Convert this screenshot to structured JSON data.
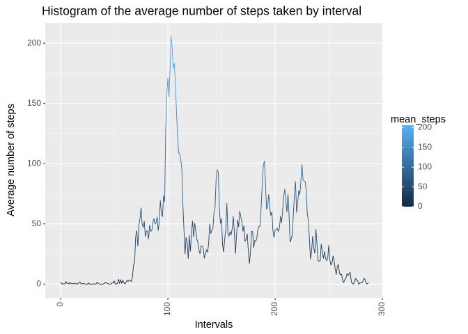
{
  "chart_data": {
    "type": "line",
    "title": "Histogram of the average number of steps taken by interval",
    "x_label": "Intervals",
    "y_label": "Average number of steps",
    "x": [
      0,
      1,
      2,
      3,
      4,
      5,
      6,
      7,
      8,
      9,
      10,
      11,
      12,
      13,
      14,
      15,
      16,
      17,
      18,
      19,
      20,
      21,
      22,
      23,
      24,
      25,
      26,
      27,
      28,
      29,
      30,
      31,
      32,
      33,
      34,
      35,
      36,
      37,
      38,
      39,
      40,
      41,
      42,
      43,
      44,
      45,
      46,
      47,
      48,
      49,
      50,
      51,
      52,
      53,
      54,
      55,
      56,
      57,
      58,
      59,
      60,
      61,
      62,
      63,
      64,
      65,
      66,
      67,
      68,
      69,
      70,
      71,
      72,
      73,
      74,
      75,
      76,
      77,
      78,
      79,
      80,
      81,
      82,
      83,
      84,
      85,
      86,
      87,
      88,
      89,
      90,
      91,
      92,
      93,
      94,
      95,
      96,
      97,
      98,
      99,
      100,
      101,
      102,
      103,
      104,
      105,
      106,
      107,
      108,
      109,
      110,
      111,
      112,
      113,
      114,
      115,
      116,
      117,
      118,
      119,
      120,
      121,
      122,
      123,
      124,
      125,
      126,
      127,
      128,
      129,
      130,
      131,
      132,
      133,
      134,
      135,
      136,
      137,
      138,
      139,
      140,
      141,
      142,
      143,
      144,
      145,
      146,
      147,
      148,
      149,
      150,
      151,
      152,
      153,
      154,
      155,
      156,
      157,
      158,
      159,
      160,
      161,
      162,
      163,
      164,
      165,
      166,
      167,
      168,
      169,
      170,
      171,
      172,
      173,
      174,
      175,
      176,
      177,
      178,
      179,
      180,
      181,
      182,
      183,
      184,
      185,
      186,
      187,
      188,
      189,
      190,
      191,
      192,
      193,
      194,
      195,
      196,
      197,
      198,
      199,
      200,
      201,
      202,
      203,
      204,
      205,
      206,
      207,
      208,
      209,
      210,
      211,
      212,
      213,
      214,
      215,
      216,
      217,
      218,
      219,
      220,
      221,
      222,
      223,
      224,
      225,
      226,
      227,
      228,
      229,
      230,
      231,
      232,
      233,
      234,
      235,
      236,
      237,
      238,
      239,
      240,
      241,
      242,
      243,
      244,
      245,
      246,
      247,
      248,
      249,
      250,
      251,
      252,
      253,
      254,
      255,
      256,
      257,
      258,
      259,
      260,
      261,
      262,
      263,
      264,
      265,
      266,
      267,
      268,
      269,
      270,
      271,
      272,
      273,
      274,
      275,
      276,
      277,
      278,
      279,
      280,
      281,
      282,
      283,
      284,
      285,
      286,
      287
    ],
    "series": [
      {
        "name": "mean_steps",
        "values": [
          1.7,
          0.3,
          0.1,
          0.2,
          0.1,
          2.1,
          0.5,
          0.9,
          0,
          1.5,
          0.3,
          0.1,
          0.3,
          0.7,
          0.2,
          0.3,
          0,
          1.1,
          1.8,
          0.2,
          0.2,
          0.4,
          0.3,
          0,
          0,
          0,
          1.1,
          0,
          0,
          0.1,
          0,
          0.2,
          0,
          0,
          1.5,
          0.9,
          0,
          0,
          0,
          0,
          0.2,
          0.6,
          1.6,
          0.6,
          0.5,
          0.1,
          0,
          0,
          1.2,
          0.9,
          2.6,
          0,
          0.3,
          0.4,
          4.1,
          0.7,
          3.5,
          0.8,
          3.1,
          1.1,
          0,
          1.6,
          3,
          2.2,
          3.3,
          3,
          2.1,
          6.1,
          16,
          18.3,
          39.5,
          44.5,
          31.5,
          49.3,
          53.8,
          63.5,
          50,
          47.1,
          52.2,
          39.3,
          44,
          44.2,
          37.4,
          49,
          43.8,
          44.4,
          50.5,
          54.5,
          49.9,
          51,
          55.7,
          44.3,
          52.3,
          69.5,
          57.8,
          56.2,
          73.4,
          68.2,
          129.4,
          157.5,
          171.2,
          155.4,
          177.3,
          206.2,
          195.9,
          179.6,
          183.4,
          167,
          143.5,
          124,
          109.1,
          108.1,
          103.7,
          96,
          66.2,
          45.2,
          24.8,
          38.8,
          35,
          21.1,
          40.6,
          27,
          42.4,
          52.7,
          38.9,
          50.8,
          44.3,
          37.4,
          34.7,
          28.3,
          25.1,
          31.9,
          31.4,
          29.7,
          21.3,
          25.5,
          28.4,
          26.5,
          33.4,
          50,
          42,
          44.6,
          46,
          59.2,
          63.9,
          87.7,
          94.8,
          92.8,
          63.4,
          50.2,
          54.5,
          32.4,
          26.5,
          37.7,
          45.1,
          67.3,
          42.3,
          39.9,
          43.3,
          41,
          46.2,
          56.4,
          42.8,
          25.1,
          40,
          53.5,
          47.3,
          60.8,
          55.8,
          52,
          43.6,
          48.7,
          35.5,
          37.5,
          41.8,
          27.5,
          17.1,
          26.1,
          43.6,
          43.8,
          30,
          36.1,
          35.5,
          38.8,
          46,
          47.8,
          48.1,
          65.3,
          82.9,
          98.7,
          102.1,
          84,
          62.1,
          64.1,
          74.5,
          63.2,
          56.9,
          59.8,
          43.9,
          38.6,
          44.7,
          45.5,
          46.2,
          43.7,
          46.6,
          56.3,
          50.7,
          61.2,
          72.7,
          78.9,
          68.9,
          59.7,
          75.1,
          56.5,
          34.8,
          37.5,
          40.7,
          58,
          74.7,
          85.3,
          59.3,
          67.8,
          77.7,
          74.2,
          85.3,
          99.5,
          86.6,
          85.6,
          84.9,
          77.8,
          58,
          53.4,
          36.3,
          20.7,
          27.4,
          40,
          30.2,
          25.5,
          45.7,
          33.5,
          19.6,
          19,
          19.3,
          33.3,
          26.8,
          21.2,
          27.3,
          21.3,
          19.5,
          21.3,
          32.3,
          20.2,
          15.9,
          17.2,
          23.5,
          19.2,
          12.5,
          8,
          14.7,
          16.3,
          8.7,
          7.8,
          8.1,
          2.6,
          1.5,
          3.7,
          4.8,
          8.5,
          7.1,
          8.7,
          9.8,
          2.2,
          0.3,
          0.1,
          1.6,
          4.6,
          3.3,
          2.8,
          0,
          0.8,
          1,
          1.6,
          2.6,
          4.7,
          3.3,
          0.6,
          0.2,
          1.1
        ]
      }
    ],
    "color_low": "#132B43",
    "color_high": "#56B1F7",
    "legend_ticks": [
      0,
      50,
      100,
      150,
      200
    ],
    "xlim": [
      -14.3,
      300.6
    ],
    "xticks": [
      0,
      100,
      200,
      300
    ],
    "ylim": [
      -11.4,
      216.8
    ],
    "yticks": [
      0,
      50,
      100,
      150,
      200
    ],
    "grid": true
  }
}
